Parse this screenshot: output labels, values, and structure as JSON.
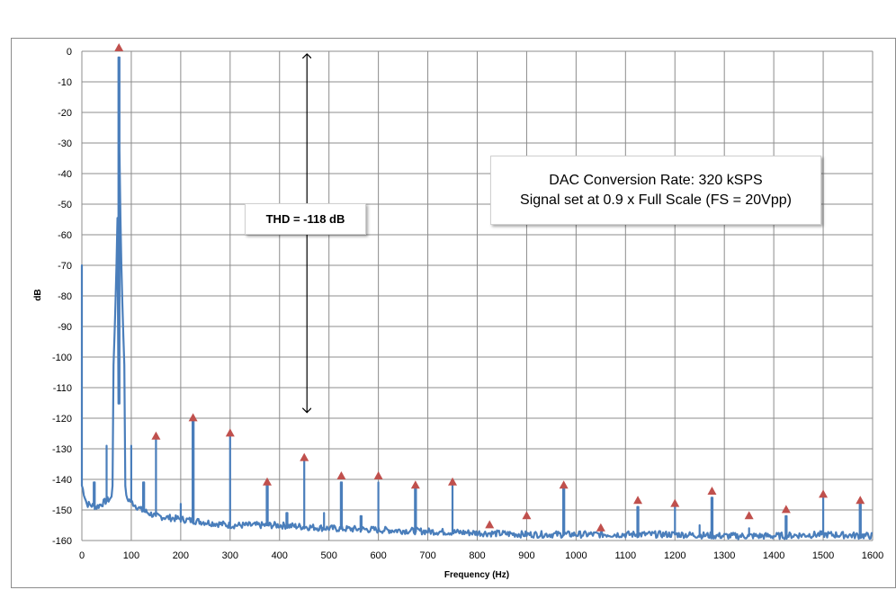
{
  "chart_data": {
    "type": "line",
    "title": "",
    "xlabel": "Frequency (Hz)",
    "ylabel": "dB",
    "xlim": [
      0,
      1600
    ],
    "ylim": [
      -160,
      0
    ],
    "x_ticks": [
      0,
      100,
      200,
      300,
      400,
      500,
      600,
      700,
      800,
      900,
      1000,
      1100,
      1200,
      1300,
      1400,
      1500,
      1600
    ],
    "y_ticks": [
      0,
      -10,
      -20,
      -30,
      -40,
      -50,
      -60,
      -70,
      -80,
      -90,
      -100,
      -110,
      -120,
      -130,
      -140,
      -150,
      -160
    ],
    "grid": true,
    "legend": "none",
    "series": [
      {
        "color": "#4a7ebb",
        "noise_floor": [
          [
            0,
            -142
          ],
          [
            10,
            -148
          ],
          [
            30,
            -149
          ],
          [
            60,
            -146
          ],
          [
            75,
            -113
          ],
          [
            90,
            -146
          ],
          [
            120,
            -150
          ],
          [
            150,
            -152
          ],
          [
            200,
            -153
          ],
          [
            300,
            -155
          ],
          [
            400,
            -155
          ],
          [
            500,
            -156
          ],
          [
            600,
            -156.5
          ],
          [
            700,
            -157
          ],
          [
            800,
            -157.5
          ],
          [
            900,
            -158
          ],
          [
            1000,
            -158
          ],
          [
            1100,
            -158
          ],
          [
            1200,
            -158
          ],
          [
            1300,
            -158.5
          ],
          [
            1400,
            -158.5
          ],
          [
            1500,
            -158
          ],
          [
            1600,
            -158.5
          ]
        ],
        "spikes": [
          {
            "x": 0,
            "y": -70
          },
          {
            "x": 25,
            "y": -141
          },
          {
            "x": 50,
            "y": -129
          },
          {
            "x": 75,
            "y": -2
          },
          {
            "x": 100,
            "y": -129
          },
          {
            "x": 125,
            "y": -141
          },
          {
            "x": 150,
            "y": -127
          },
          {
            "x": 200,
            "y": -148
          },
          {
            "x": 225,
            "y": -121
          },
          {
            "x": 300,
            "y": -126
          },
          {
            "x": 375,
            "y": -142
          },
          {
            "x": 415,
            "y": -151
          },
          {
            "x": 450,
            "y": -134
          },
          {
            "x": 490,
            "y": -151
          },
          {
            "x": 525,
            "y": -141
          },
          {
            "x": 565,
            "y": -152
          },
          {
            "x": 600,
            "y": -141
          },
          {
            "x": 675,
            "y": -143
          },
          {
            "x": 750,
            "y": -142
          },
          {
            "x": 975,
            "y": -143
          },
          {
            "x": 1125,
            "y": -149
          },
          {
            "x": 1200,
            "y": -149
          },
          {
            "x": 1250,
            "y": -155
          },
          {
            "x": 1275,
            "y": -146
          },
          {
            "x": 1350,
            "y": -156
          },
          {
            "x": 1425,
            "y": -152
          },
          {
            "x": 1500,
            "y": -146
          },
          {
            "x": 1575,
            "y": -148
          }
        ]
      }
    ],
    "harmonic_markers": {
      "color": "#c0504d",
      "points": [
        {
          "x": 75,
          "y": 0
        },
        {
          "x": 150,
          "y": -127
        },
        {
          "x": 225,
          "y": -121
        },
        {
          "x": 300,
          "y": -126
        },
        {
          "x": 375,
          "y": -142
        },
        {
          "x": 450,
          "y": -134
        },
        {
          "x": 525,
          "y": -140
        },
        {
          "x": 600,
          "y": -140
        },
        {
          "x": 675,
          "y": -143
        },
        {
          "x": 750,
          "y": -142
        },
        {
          "x": 825,
          "y": -156
        },
        {
          "x": 900,
          "y": -153
        },
        {
          "x": 975,
          "y": -143
        },
        {
          "x": 1050,
          "y": -157
        },
        {
          "x": 1125,
          "y": -148
        },
        {
          "x": 1200,
          "y": -149
        },
        {
          "x": 1275,
          "y": -145
        },
        {
          "x": 1350,
          "y": -153
        },
        {
          "x": 1425,
          "y": -151
        },
        {
          "x": 1500,
          "y": -146
        },
        {
          "x": 1575,
          "y": -148
        }
      ]
    },
    "annotations": {
      "thd_text": "THD  = -118 dB",
      "thd_arrow": {
        "x": 450,
        "y_top": 0,
        "y_bottom": -119
      },
      "info_line1": "DAC Conversion Rate: 320 kSPS",
      "info_line2": "Signal set at 0.9 x Full Scale (FS = 20Vpp)"
    }
  }
}
